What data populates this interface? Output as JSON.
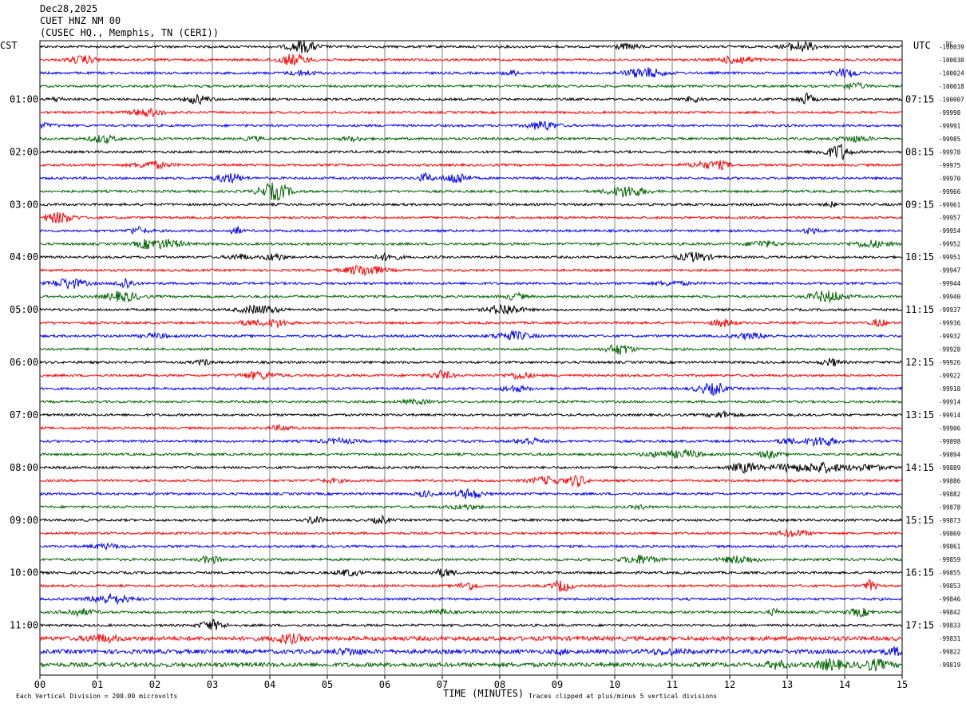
{
  "header": {
    "date": "Dec28,2025",
    "station": "CUET HNZ NM 00",
    "location": "(CUSEC HQ., Memphis, TN (CERI))"
  },
  "chart_data": {
    "type": "line",
    "title": "Dec28,2025 CUET HNZ NM 00 (CUSEC HQ., Memphis, TN (CERI))",
    "xlabel": "TIME (MINUTES)",
    "xlim": [
      0,
      15
    ],
    "x_ticks": [
      "00",
      "01",
      "02",
      "03",
      "04",
      "05",
      "06",
      "07",
      "08",
      "09",
      "10",
      "11",
      "12",
      "13",
      "14",
      "15"
    ],
    "left_axis_title": "CST",
    "right_axis_title": "UTC",
    "dc_label": "DC",
    "left_hour_labels": [
      "01:00",
      "02:00",
      "03:00",
      "04:00",
      "05:00",
      "06:00",
      "07:00",
      "08:00",
      "09:00",
      "10:00",
      "11:00"
    ],
    "right_hour_labels": [
      "07:15",
      "08:15",
      "09:15",
      "10:15",
      "11:15",
      "12:15",
      "13:15",
      "14:15",
      "15:15",
      "16:15",
      "17:15"
    ],
    "trace_colors": [
      "#000000",
      "#ff0000",
      "#0000ff",
      "#006400"
    ],
    "dc_offsets": [
      -100039,
      -100030,
      -100024,
      -100018,
      -100007,
      -99998,
      -99991,
      -99985,
      -99978,
      -99975,
      -99970,
      -99966,
      -99961,
      -99957,
      -99954,
      -99952,
      -99951,
      -99947,
      -99944,
      -99940,
      -99937,
      -99936,
      -99932,
      -99928,
      -99926,
      -99922,
      -99918,
      -99914,
      -99914,
      -99906,
      -99898,
      -99894,
      -99889,
      -99886,
      -99882,
      -99878,
      -99873,
      -99869,
      -99861,
      -99859,
      -99855,
      -99853,
      -99846,
      -99842,
      -99833,
      -99831,
      -99822,
      -99819
    ],
    "grid": "vertical",
    "footer_left": "Each Vertical Division =  200.00 microvolts",
    "footer_right": "Traces clipped at plus/minus 5 vertical divisions"
  }
}
